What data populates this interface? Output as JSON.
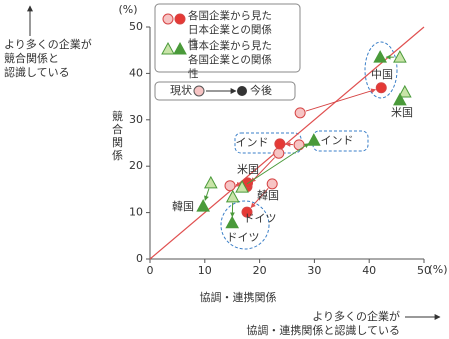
{
  "chart_data": {
    "type": "scatter",
    "xlabel": "協調・連携関係",
    "ylabel": "競合関係",
    "x_unit": "(%)",
    "y_unit": "(%)",
    "xlim": [
      0,
      50
    ],
    "ylim": [
      0,
      50
    ],
    "xticks": [
      0,
      10,
      20,
      30,
      40,
      50
    ],
    "yticks": [
      0,
      10,
      20,
      30,
      40,
      50
    ],
    "reference_line_color": "#e05050",
    "phases": [
      "現状",
      "今後"
    ],
    "series": [
      {
        "name": "各国企業から見た日本企業との関係性",
        "marker": "circle",
        "colors": [
          "#f7c4c4",
          "#e53935"
        ],
        "edge_color": "#d64545",
        "current": {
          "x": [
            27.4,
            27.2,
            23.5,
            14.6,
            22.3
          ],
          "y": [
            31.5,
            24.6,
            22.8,
            15.8,
            16.2
          ]
        },
        "future": {
          "x": [
            42.2,
            23.7,
            17.7,
            17.8,
            17.7
          ],
          "y": [
            36.9,
            24.8,
            15.6,
            16.4,
            10.1
          ]
        }
      },
      {
        "name": "日本企業から見た各国企業との関係性",
        "marker": "triangle",
        "colors": [
          "#c9e4a8",
          "#4a9a3a"
        ],
        "edge_color": "#4a9a3a",
        "current": {
          "x": [
            45.6,
            16.8,
            46.5,
            11.1,
            15.1
          ],
          "y": [
            43.5,
            15.5,
            36.0,
            16.4,
            13.4
          ]
        },
        "future": {
          "x": [
            42.0,
            29.9,
            45.6,
            9.7,
            15.0
          ],
          "y": [
            43.5,
            25.6,
            34.3,
            11.4,
            7.8
          ]
        }
      }
    ],
    "annotations": [
      "中国",
      "米国",
      "インド",
      "インド",
      "米国",
      "韓国",
      "韓国",
      "ドイツ",
      "ドイツ"
    ],
    "y_note": [
      "より多くの企業が",
      "競合関係と",
      "認識している"
    ],
    "x_note": [
      "より多くの企業が",
      "協調・連携関係と認識している"
    ]
  }
}
